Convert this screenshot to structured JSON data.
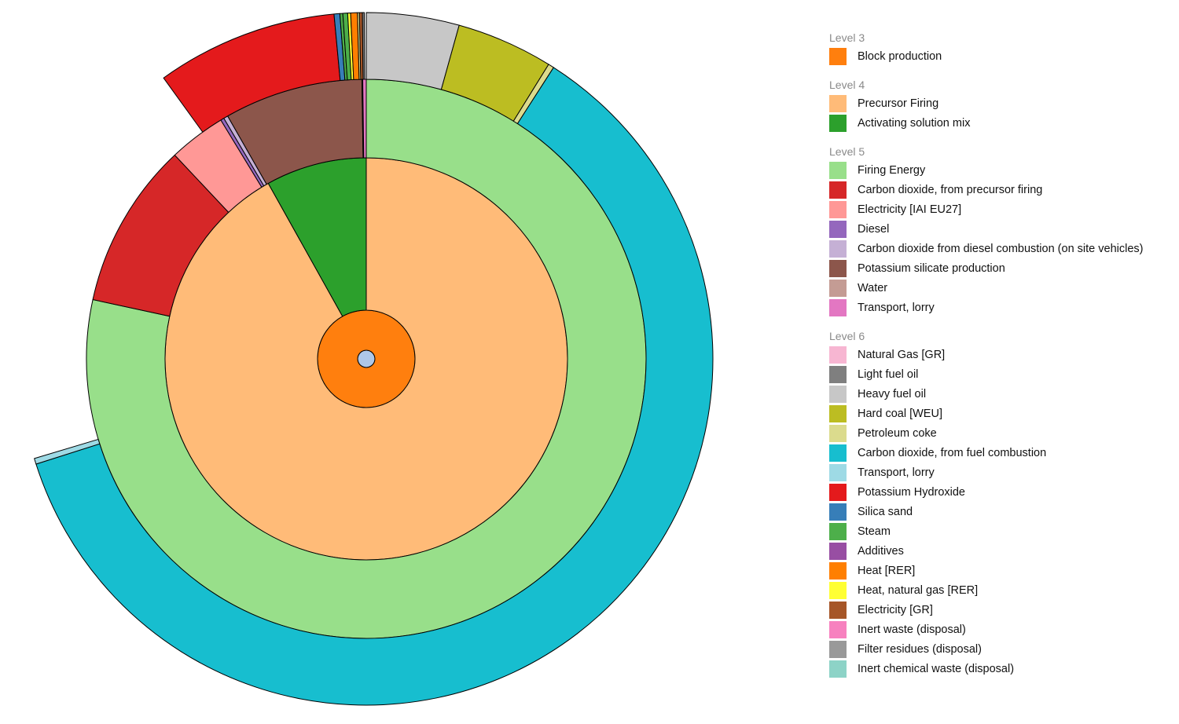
{
  "chart_data": {
    "type": "sunburst",
    "center_color": "#aec7e8",
    "rings": [
      {
        "level": "Level 3",
        "segments": [
          {
            "name": "Block production",
            "value": 100,
            "color": "#ff7f0e"
          }
        ]
      },
      {
        "level": "Level 4",
        "segments": [
          {
            "name": "Precursor Firing",
            "value": 91.9,
            "color": "#ffbb78"
          },
          {
            "name": "Activating solution mix",
            "value": 8.1,
            "color": "#2ca02c"
          }
        ]
      },
      {
        "level": "Level 5",
        "segments": [
          {
            "name": "Firing Energy",
            "value": 78.4,
            "color": "#98df8a"
          },
          {
            "name": "Carbon dioxide, from precursor firing",
            "value": 9.6,
            "color": "#d62728"
          },
          {
            "name": "Electricity [IAI EU27]",
            "value": 3.3,
            "color": "#ff9896"
          },
          {
            "name": "Diesel",
            "value": 0.2,
            "color": "#9467bd"
          },
          {
            "name": "Carbon dioxide from diesel combustion (on site vehicles)",
            "value": 0.25,
            "color": "#c5b0d5"
          },
          {
            "name": "Potassium silicate production",
            "value": 8.0,
            "color": "#8c564b"
          },
          {
            "name": "Water",
            "value": 0.05,
            "color": "#c49c94"
          },
          {
            "name": "Transport, lorry",
            "value": 0.2,
            "color": "#e377c2"
          }
        ]
      },
      {
        "level": "Level 6",
        "segments": [
          {
            "name": "Heavy fuel oil",
            "value": 4.8,
            "color": "#c7c7c7"
          },
          {
            "name": "Hard coal [WEU]",
            "value": 5.0,
            "color": "#bcbd22"
          },
          {
            "name": "Petroleum coke",
            "value": 0.3,
            "color": "#dbdb8d"
          },
          {
            "name": "Carbon dioxide, from fuel combustion",
            "value": 67.8,
            "color": "#17becf"
          },
          {
            "name": "Transport, lorry",
            "value": 0.3,
            "color": "#9edae5"
          },
          {
            "name": "",
            "value": 21.9,
            "color": null
          },
          {
            "name": "Potassium Hydroxide",
            "value": 9.4,
            "color": "#e41a1c"
          },
          {
            "name": "Silica sand",
            "value": 0.3,
            "color": "#377eb8"
          },
          {
            "name": "Steam",
            "value": 0.15,
            "color": "#4daf4a"
          },
          {
            "name": "Steam",
            "value": 0.25,
            "color": "#4daf4a"
          },
          {
            "name": "Heat, natural gas [RER]",
            "value": 0.15,
            "color": "#ffff33"
          },
          {
            "name": "Heat [RER]",
            "value": 0.35,
            "color": "#ff7f00"
          },
          {
            "name": "Petroleum coke",
            "value": 0.1,
            "color": "#dbdb8d"
          },
          {
            "name": "Electricity [GR]",
            "value": 0.15,
            "color": "#a65628"
          },
          {
            "name": "Light fuel oil",
            "value": 0.1,
            "color": "#7f7f7f"
          },
          {
            "name": "",
            "value": 0.1,
            "color": null
          }
        ]
      }
    ]
  },
  "legend": [
    {
      "title": "Level 3",
      "items": [
        {
          "label": "Block production",
          "color": "#ff7f0e"
        }
      ]
    },
    {
      "title": "Level 4",
      "items": [
        {
          "label": "Precursor Firing",
          "color": "#ffbb78"
        },
        {
          "label": "Activating solution mix",
          "color": "#2ca02c"
        }
      ]
    },
    {
      "title": "Level 5",
      "items": [
        {
          "label": "Firing Energy",
          "color": "#98df8a"
        },
        {
          "label": "Carbon dioxide, from precursor firing",
          "color": "#d62728"
        },
        {
          "label": "Electricity [IAI EU27]",
          "color": "#ff9896"
        },
        {
          "label": "Diesel",
          "color": "#9467bd"
        },
        {
          "label": "Carbon dioxide from diesel combustion (on site vehicles)",
          "color": "#c5b0d5"
        },
        {
          "label": "Potassium silicate production",
          "color": "#8c564b"
        },
        {
          "label": "Water",
          "color": "#c49c94"
        },
        {
          "label": "Transport, lorry",
          "color": "#e377c2"
        }
      ]
    },
    {
      "title": "Level 6",
      "items": [
        {
          "label": "Natural Gas [GR]",
          "color": "#f7b6d2"
        },
        {
          "label": "Light fuel oil",
          "color": "#7f7f7f"
        },
        {
          "label": "Heavy fuel oil",
          "color": "#c7c7c7"
        },
        {
          "label": "Hard coal [WEU]",
          "color": "#bcbd22"
        },
        {
          "label": "Petroleum coke",
          "color": "#dbdb8d"
        },
        {
          "label": "Carbon dioxide, from fuel combustion",
          "color": "#17becf"
        },
        {
          "label": "Transport, lorry",
          "color": "#9edae5"
        },
        {
          "label": "Potassium Hydroxide",
          "color": "#e41a1c"
        },
        {
          "label": "Silica sand",
          "color": "#377eb8"
        },
        {
          "label": "Steam",
          "color": "#4daf4a"
        },
        {
          "label": "Additives",
          "color": "#984ea3"
        },
        {
          "label": "Heat [RER]",
          "color": "#ff7f00"
        },
        {
          "label": "Heat, natural gas [RER]",
          "color": "#ffff33"
        },
        {
          "label": "Electricity [GR]",
          "color": "#a65628"
        },
        {
          "label": "Inert waste (disposal)",
          "color": "#f781bf"
        },
        {
          "label": "Filter residues (disposal)",
          "color": "#999999"
        },
        {
          "label": "Inert chemical waste (disposal)",
          "color": "#8dd3c7"
        }
      ]
    }
  ]
}
